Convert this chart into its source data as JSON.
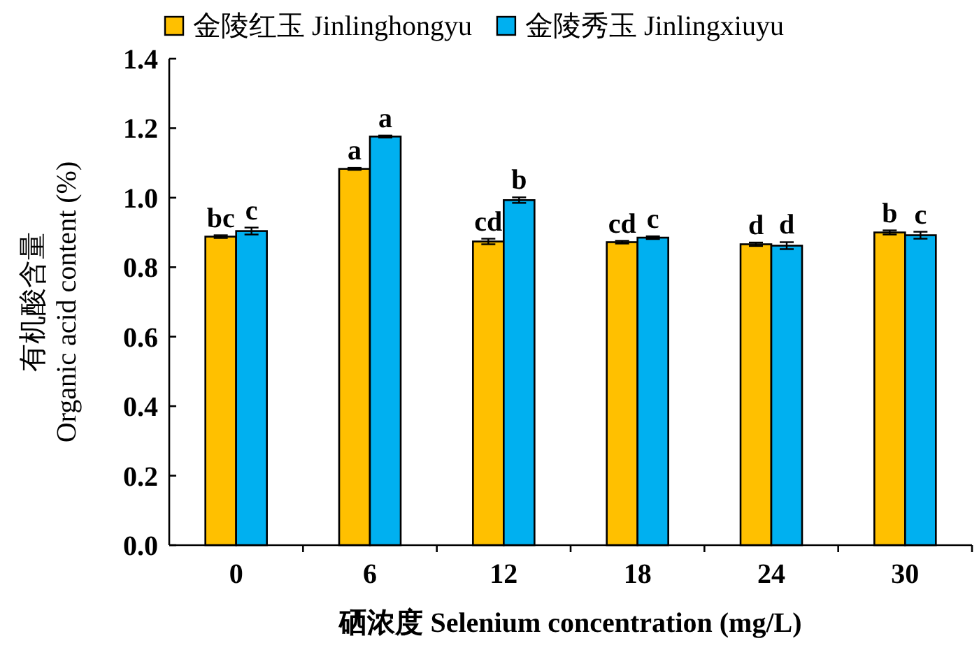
{
  "chart_data": {
    "type": "bar",
    "xlabel": "硒浓度 Selenium concentration (mg/L)",
    "ylabel": "有机酸含量\nOrganic acid content (%)",
    "categories": [
      "0",
      "6",
      "12",
      "18",
      "24",
      "30"
    ],
    "series": [
      {
        "name": "金陵红玉 Jinlinghongyu",
        "color": "#ffc000",
        "values": [
          0.888,
          1.083,
          0.874,
          0.872,
          0.866,
          0.9
        ],
        "errors": [
          0.004,
          0.003,
          0.008,
          0.004,
          0.005,
          0.006
        ],
        "value_labels": [
          "bc",
          "a",
          "cd",
          "cd",
          "d",
          "b"
        ]
      },
      {
        "name": "金陵秀玉 Jinlingxiuyu",
        "color": "#00b0f0",
        "values": [
          0.904,
          1.176,
          0.993,
          0.885,
          0.862,
          0.892
        ],
        "errors": [
          0.01,
          0.003,
          0.008,
          0.004,
          0.01,
          0.01
        ],
        "value_labels": [
          "c",
          "a",
          "b",
          "c",
          "d",
          "c"
        ]
      }
    ],
    "ylim": [
      0,
      1.4
    ],
    "yticks": [
      {
        "value": 0,
        "label": "0.0"
      },
      0.2,
      0.4,
      0.6,
      0.8,
      {
        "value": 1,
        "label": "1.0"
      },
      1.2,
      1.4
    ],
    "legend": "top left",
    "grid": false
  }
}
